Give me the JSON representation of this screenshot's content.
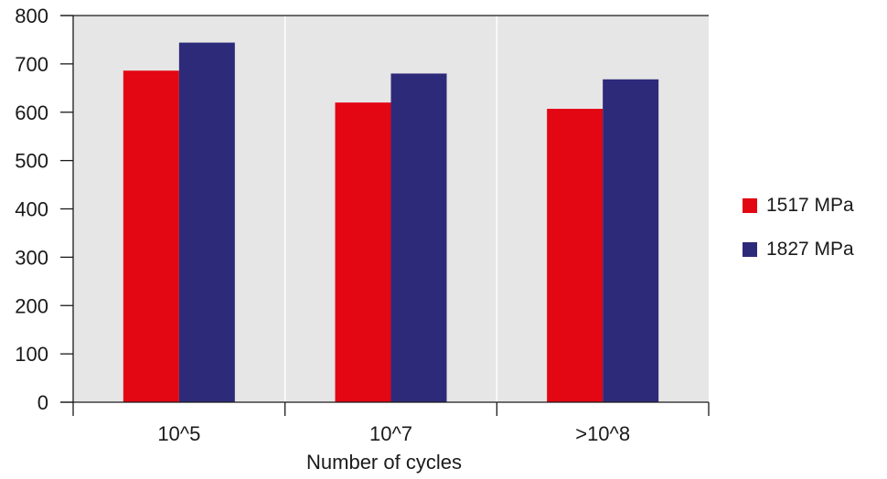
{
  "chart_data": {
    "type": "bar",
    "categories": [
      "10^5",
      "10^7",
      ">10^8"
    ],
    "series": [
      {
        "name": "1517 MPa",
        "values": [
          686,
          620,
          607
        ],
        "color": "#e30613"
      },
      {
        "name": "1827 MPa",
        "values": [
          744,
          680,
          668
        ],
        "color": "#2e2a7a"
      }
    ],
    "xlabel": "Number of cycles",
    "ylabel": "",
    "ylim": [
      0,
      800
    ],
    "yticks": [
      0,
      100,
      200,
      300,
      400,
      500,
      600,
      700,
      800
    ],
    "grid": true,
    "legend_position": "right",
    "plot_background": "#e6e6e6"
  }
}
